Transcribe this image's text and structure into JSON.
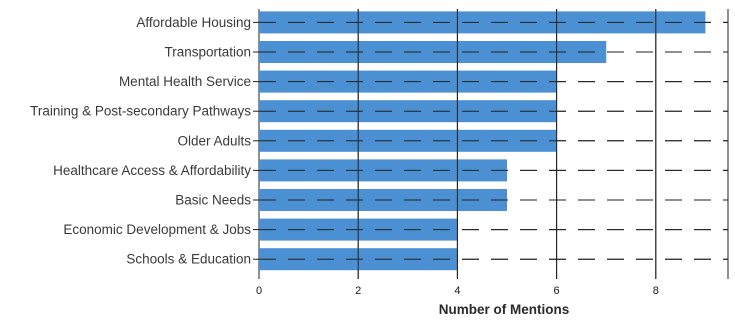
{
  "chart_data": {
    "type": "bar",
    "orientation": "horizontal",
    "title": "",
    "xlabel": "Number of Mentions",
    "ylabel": "",
    "categories": [
      "Affordable Housing",
      "Transportation",
      "Mental Health Service",
      "Training & Post-secondary Pathways",
      "Older Adults",
      "Healthcare Access & Affordability",
      "Basic Needs",
      "Economic Development & Jobs",
      "Schools & Education"
    ],
    "values": [
      9,
      7,
      6,
      6,
      6,
      5,
      5,
      4,
      4
    ],
    "xlim": [
      0,
      9.4
    ],
    "xticks": [
      0,
      2,
      4,
      6,
      8
    ],
    "xtick_labels": [
      "0",
      "2",
      "4",
      "6",
      "8"
    ],
    "bar_color": "#4a90d2",
    "grid": "vertical solid lines, horizontal dashed lines"
  }
}
